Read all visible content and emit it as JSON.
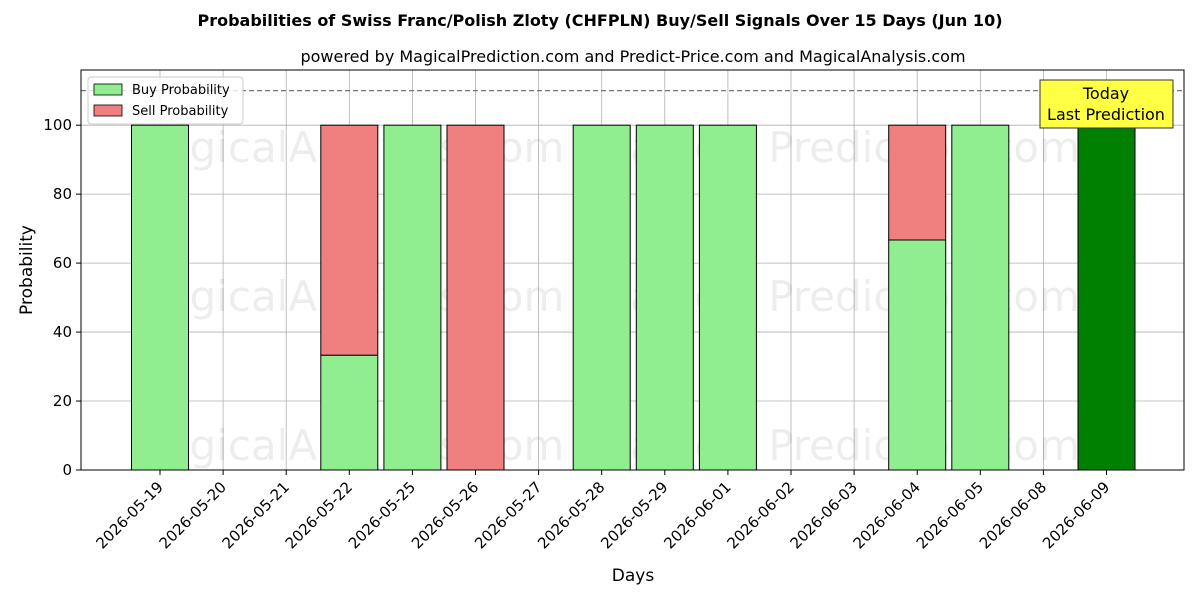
{
  "chart_data": {
    "type": "bar",
    "stacked": true,
    "title": "Probabilities of Swiss Franc/Polish Zloty (CHFPLN) Buy/Sell Signals Over 15 Days (Jun 10)",
    "subtitle": "powered by MagicalPrediction.com and Predict-Price.com and MagicalAnalysis.com",
    "xlabel": "Days",
    "ylabel": "Probability",
    "ylim": [
      0,
      116
    ],
    "yticks": [
      0,
      20,
      40,
      60,
      80,
      100
    ],
    "reference_line": 110,
    "grid": true,
    "legend_placement": "top-left",
    "categories": [
      "2026-05-19",
      "2026-05-20",
      "2026-05-21",
      "2026-05-22",
      "2026-05-25",
      "2026-05-26",
      "2026-05-27",
      "2026-05-28",
      "2026-05-29",
      "2026-06-01",
      "2026-06-02",
      "2026-06-03",
      "2026-06-04",
      "2026-06-05",
      "2026-06-08",
      "2026-06-09"
    ],
    "series": [
      {
        "name": "Buy Probability",
        "color": "#90ee90",
        "values": [
          100,
          0,
          0,
          33.3,
          100,
          0,
          0,
          100,
          100,
          100,
          0,
          0,
          66.7,
          100,
          0,
          100
        ]
      },
      {
        "name": "Sell Probability",
        "color": "#f08080",
        "values": [
          0,
          0,
          0,
          66.7,
          0,
          100,
          0,
          0,
          0,
          0,
          0,
          0,
          33.3,
          0,
          0,
          0
        ]
      }
    ],
    "highlight": {
      "category": "2026-06-09",
      "color": "#008000"
    },
    "annotation": {
      "lines": [
        "Today",
        "Last Prediction"
      ],
      "box_color": "#ffff44"
    },
    "watermarks": [
      "MagicalAnalysis.com",
      "Magical Prediction.com"
    ]
  }
}
